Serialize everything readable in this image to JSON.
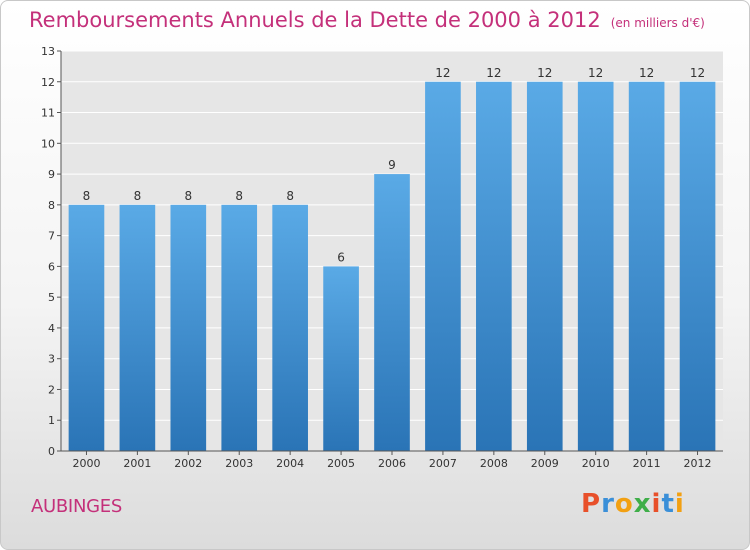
{
  "header": {
    "title": "Remboursements Annuels de la Dette de 2000 à 2012",
    "unit": "(en milliers d'€)"
  },
  "footer": {
    "commune": "AUBINGES",
    "logo_text": "Proxiti",
    "logo_colors": [
      "#e8502a",
      "#3a8fd8",
      "#f2a012",
      "#3fae49",
      "#e8502a",
      "#3a8fd8",
      "#f2a012"
    ]
  },
  "chart_data": {
    "type": "bar",
    "categories": [
      "2000",
      "2001",
      "2002",
      "2003",
      "2004",
      "2005",
      "2006",
      "2007",
      "2008",
      "2009",
      "2010",
      "2011",
      "2012"
    ],
    "values": [
      8,
      8,
      8,
      8,
      8,
      6,
      9,
      12,
      12,
      12,
      12,
      12,
      12
    ],
    "data_labels": [
      "8",
      "8",
      "8",
      "8",
      "8",
      "6",
      "9",
      "12",
      "12",
      "12",
      "12",
      "12",
      "12"
    ],
    "title": "Remboursements Annuels de la Dette de 2000 à 2012",
    "ylim": [
      0,
      13
    ],
    "yticks": [
      0,
      1,
      2,
      3,
      4,
      5,
      6,
      7,
      8,
      9,
      10,
      11,
      12,
      13
    ],
    "grid": true,
    "colors": {
      "bar_top": "#5aaae6",
      "bar_bottom": "#2a74b6",
      "grid": "#ffffff",
      "plot_bg": "#e6e6e6"
    }
  }
}
